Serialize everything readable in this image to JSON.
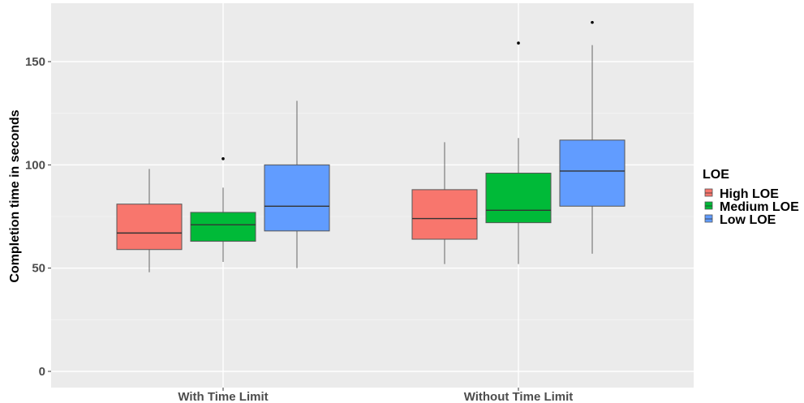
{
  "chart_data": {
    "type": "boxplot",
    "xlabel": "",
    "ylabel": "Completion time in seconds",
    "ylim": [
      -3,
      173
    ],
    "y_ticks": [
      0,
      50,
      100,
      150
    ],
    "grid": true,
    "categories": [
      "With Time Limit",
      "Without Time Limit"
    ],
    "legend": {
      "title": "LOE",
      "placement": "right"
    },
    "series": [
      {
        "name": "High LOE",
        "color": "#F8766D",
        "boxes": [
          {
            "min": 48,
            "q1": 59,
            "median": 67,
            "q3": 81,
            "max": 98,
            "outliers": []
          },
          {
            "min": 52,
            "q1": 64,
            "median": 74,
            "q3": 88,
            "max": 111,
            "outliers": []
          }
        ]
      },
      {
        "name": "Medium LOE",
        "color": "#00BA38",
        "boxes": [
          {
            "min": 53,
            "q1": 63,
            "median": 71,
            "q3": 77,
            "max": 89,
            "outliers": [
              103
            ]
          },
          {
            "min": 52,
            "q1": 72,
            "median": 78,
            "q3": 96,
            "max": 113,
            "outliers": [
              159
            ]
          }
        ]
      },
      {
        "name": "Low LOE",
        "color": "#619CFF",
        "boxes": [
          {
            "min": 50,
            "q1": 68,
            "median": 80,
            "q3": 100,
            "max": 131,
            "outliers": []
          },
          {
            "min": 57,
            "q1": 80,
            "median": 97,
            "q3": 112,
            "max": 158,
            "outliers": [
              169
            ]
          }
        ]
      }
    ]
  }
}
